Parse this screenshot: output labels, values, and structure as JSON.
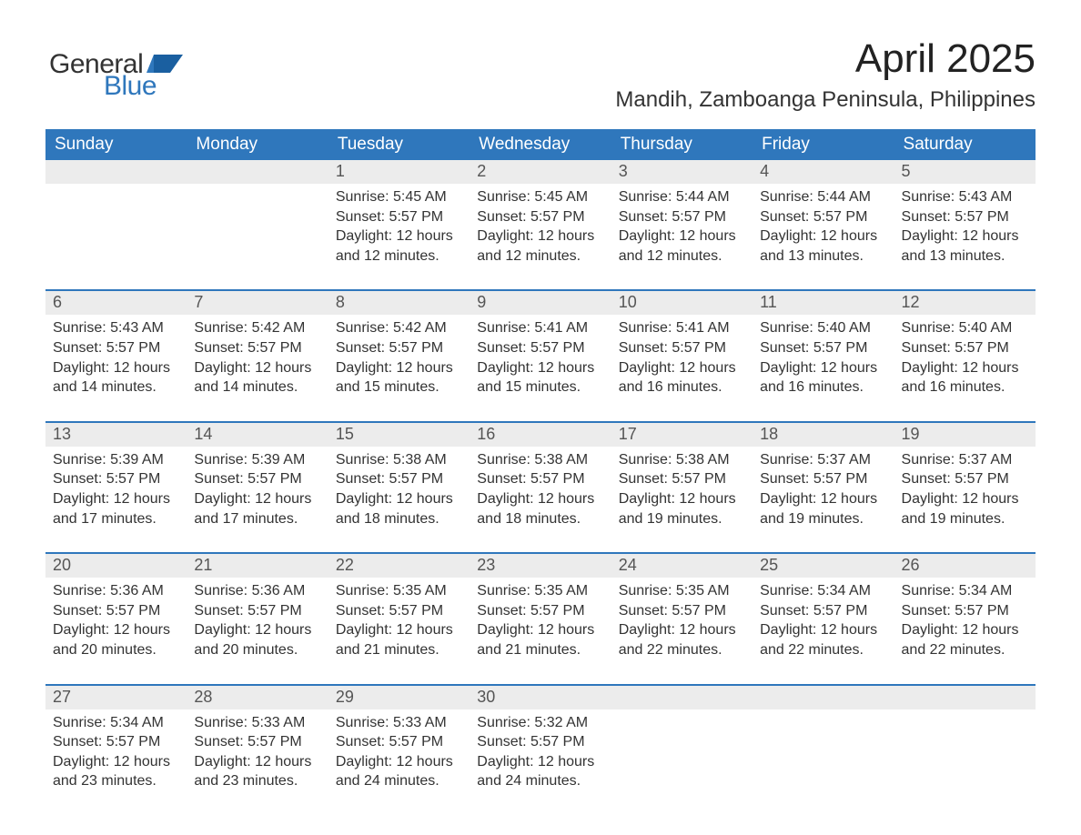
{
  "brand": {
    "word1": "General",
    "word2": "Blue",
    "text_color": "#333333",
    "accent_color": "#2f77bc"
  },
  "title": "April 2025",
  "location": "Mandih, Zamboanga Peninsula, Philippines",
  "colors": {
    "header_bg": "#2f77bc",
    "header_text": "#ffffff",
    "daynum_bg": "#ececec",
    "daynum_text": "#555555",
    "body_text": "#333333",
    "row_divider": "#2f77bc",
    "page_bg": "#ffffff"
  },
  "typography": {
    "title_fontsize": 44,
    "location_fontsize": 24,
    "header_fontsize": 19,
    "daynum_fontsize": 18,
    "cell_fontsize": 16,
    "logo_fontsize": 30
  },
  "columns": [
    "Sunday",
    "Monday",
    "Tuesday",
    "Wednesday",
    "Thursday",
    "Friday",
    "Saturday"
  ],
  "weeks": [
    [
      {
        "day": "",
        "sunrise": "",
        "sunset": "",
        "daylight": ""
      },
      {
        "day": "",
        "sunrise": "",
        "sunset": "",
        "daylight": ""
      },
      {
        "day": "1",
        "sunrise": "Sunrise: 5:45 AM",
        "sunset": "Sunset: 5:57 PM",
        "daylight": "Daylight: 12 hours and 12 minutes."
      },
      {
        "day": "2",
        "sunrise": "Sunrise: 5:45 AM",
        "sunset": "Sunset: 5:57 PM",
        "daylight": "Daylight: 12 hours and 12 minutes."
      },
      {
        "day": "3",
        "sunrise": "Sunrise: 5:44 AM",
        "sunset": "Sunset: 5:57 PM",
        "daylight": "Daylight: 12 hours and 12 minutes."
      },
      {
        "day": "4",
        "sunrise": "Sunrise: 5:44 AM",
        "sunset": "Sunset: 5:57 PM",
        "daylight": "Daylight: 12 hours and 13 minutes."
      },
      {
        "day": "5",
        "sunrise": "Sunrise: 5:43 AM",
        "sunset": "Sunset: 5:57 PM",
        "daylight": "Daylight: 12 hours and 13 minutes."
      }
    ],
    [
      {
        "day": "6",
        "sunrise": "Sunrise: 5:43 AM",
        "sunset": "Sunset: 5:57 PM",
        "daylight": "Daylight: 12 hours and 14 minutes."
      },
      {
        "day": "7",
        "sunrise": "Sunrise: 5:42 AM",
        "sunset": "Sunset: 5:57 PM",
        "daylight": "Daylight: 12 hours and 14 minutes."
      },
      {
        "day": "8",
        "sunrise": "Sunrise: 5:42 AM",
        "sunset": "Sunset: 5:57 PM",
        "daylight": "Daylight: 12 hours and 15 minutes."
      },
      {
        "day": "9",
        "sunrise": "Sunrise: 5:41 AM",
        "sunset": "Sunset: 5:57 PM",
        "daylight": "Daylight: 12 hours and 15 minutes."
      },
      {
        "day": "10",
        "sunrise": "Sunrise: 5:41 AM",
        "sunset": "Sunset: 5:57 PM",
        "daylight": "Daylight: 12 hours and 16 minutes."
      },
      {
        "day": "11",
        "sunrise": "Sunrise: 5:40 AM",
        "sunset": "Sunset: 5:57 PM",
        "daylight": "Daylight: 12 hours and 16 minutes."
      },
      {
        "day": "12",
        "sunrise": "Sunrise: 5:40 AM",
        "sunset": "Sunset: 5:57 PM",
        "daylight": "Daylight: 12 hours and 16 minutes."
      }
    ],
    [
      {
        "day": "13",
        "sunrise": "Sunrise: 5:39 AM",
        "sunset": "Sunset: 5:57 PM",
        "daylight": "Daylight: 12 hours and 17 minutes."
      },
      {
        "day": "14",
        "sunrise": "Sunrise: 5:39 AM",
        "sunset": "Sunset: 5:57 PM",
        "daylight": "Daylight: 12 hours and 17 minutes."
      },
      {
        "day": "15",
        "sunrise": "Sunrise: 5:38 AM",
        "sunset": "Sunset: 5:57 PM",
        "daylight": "Daylight: 12 hours and 18 minutes."
      },
      {
        "day": "16",
        "sunrise": "Sunrise: 5:38 AM",
        "sunset": "Sunset: 5:57 PM",
        "daylight": "Daylight: 12 hours and 18 minutes."
      },
      {
        "day": "17",
        "sunrise": "Sunrise: 5:38 AM",
        "sunset": "Sunset: 5:57 PM",
        "daylight": "Daylight: 12 hours and 19 minutes."
      },
      {
        "day": "18",
        "sunrise": "Sunrise: 5:37 AM",
        "sunset": "Sunset: 5:57 PM",
        "daylight": "Daylight: 12 hours and 19 minutes."
      },
      {
        "day": "19",
        "sunrise": "Sunrise: 5:37 AM",
        "sunset": "Sunset: 5:57 PM",
        "daylight": "Daylight: 12 hours and 19 minutes."
      }
    ],
    [
      {
        "day": "20",
        "sunrise": "Sunrise: 5:36 AM",
        "sunset": "Sunset: 5:57 PM",
        "daylight": "Daylight: 12 hours and 20 minutes."
      },
      {
        "day": "21",
        "sunrise": "Sunrise: 5:36 AM",
        "sunset": "Sunset: 5:57 PM",
        "daylight": "Daylight: 12 hours and 20 minutes."
      },
      {
        "day": "22",
        "sunrise": "Sunrise: 5:35 AM",
        "sunset": "Sunset: 5:57 PM",
        "daylight": "Daylight: 12 hours and 21 minutes."
      },
      {
        "day": "23",
        "sunrise": "Sunrise: 5:35 AM",
        "sunset": "Sunset: 5:57 PM",
        "daylight": "Daylight: 12 hours and 21 minutes."
      },
      {
        "day": "24",
        "sunrise": "Sunrise: 5:35 AM",
        "sunset": "Sunset: 5:57 PM",
        "daylight": "Daylight: 12 hours and 22 minutes."
      },
      {
        "day": "25",
        "sunrise": "Sunrise: 5:34 AM",
        "sunset": "Sunset: 5:57 PM",
        "daylight": "Daylight: 12 hours and 22 minutes."
      },
      {
        "day": "26",
        "sunrise": "Sunrise: 5:34 AM",
        "sunset": "Sunset: 5:57 PM",
        "daylight": "Daylight: 12 hours and 22 minutes."
      }
    ],
    [
      {
        "day": "27",
        "sunrise": "Sunrise: 5:34 AM",
        "sunset": "Sunset: 5:57 PM",
        "daylight": "Daylight: 12 hours and 23 minutes."
      },
      {
        "day": "28",
        "sunrise": "Sunrise: 5:33 AM",
        "sunset": "Sunset: 5:57 PM",
        "daylight": "Daylight: 12 hours and 23 minutes."
      },
      {
        "day": "29",
        "sunrise": "Sunrise: 5:33 AM",
        "sunset": "Sunset: 5:57 PM",
        "daylight": "Daylight: 12 hours and 24 minutes."
      },
      {
        "day": "30",
        "sunrise": "Sunrise: 5:32 AM",
        "sunset": "Sunset: 5:57 PM",
        "daylight": "Daylight: 12 hours and 24 minutes."
      },
      {
        "day": "",
        "sunrise": "",
        "sunset": "",
        "daylight": ""
      },
      {
        "day": "",
        "sunrise": "",
        "sunset": "",
        "daylight": ""
      },
      {
        "day": "",
        "sunrise": "",
        "sunset": "",
        "daylight": ""
      }
    ]
  ]
}
